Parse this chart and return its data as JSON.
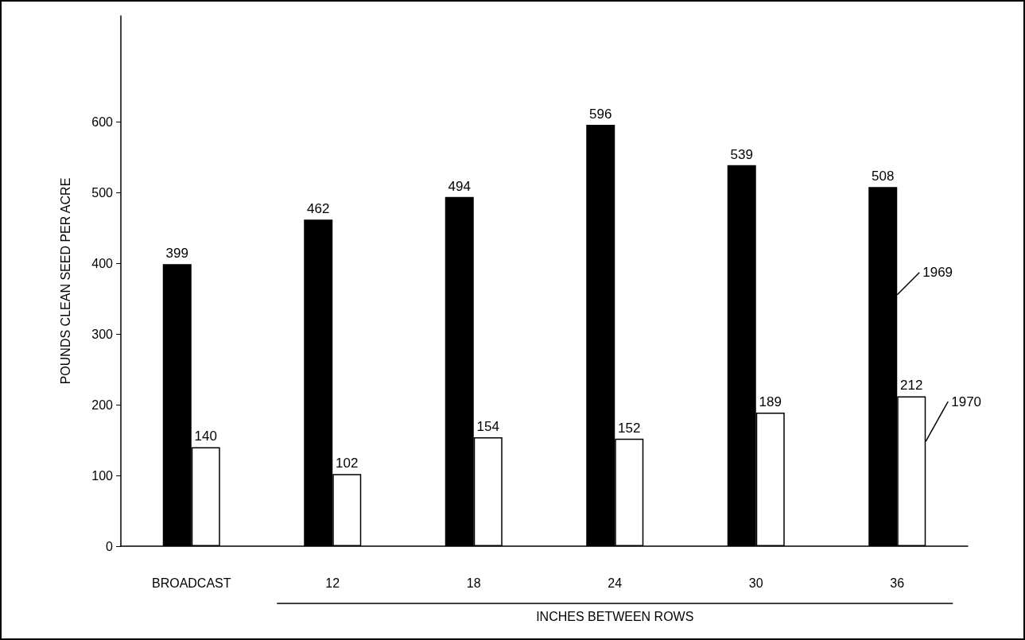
{
  "chart_data": {
    "type": "bar",
    "categories": [
      "BROADCAST",
      "12",
      "18",
      "24",
      "30",
      "36"
    ],
    "series": [
      {
        "name": "1969",
        "color": "#000000",
        "values": [
          399,
          462,
          494,
          596,
          539,
          508
        ]
      },
      {
        "name": "1970",
        "color": "#ffffff",
        "values": [
          140,
          102,
          154,
          152,
          189,
          212
        ]
      }
    ],
    "ylabel": "POUNDS CLEAN SEED PER ACRE",
    "xlabel": "INCHES BETWEEN ROWS",
    "ylim": [
      0,
      750
    ],
    "yticks": [
      0,
      100,
      200,
      300,
      400,
      500,
      600
    ],
    "data_labels": true,
    "grid": false,
    "legend": false
  }
}
